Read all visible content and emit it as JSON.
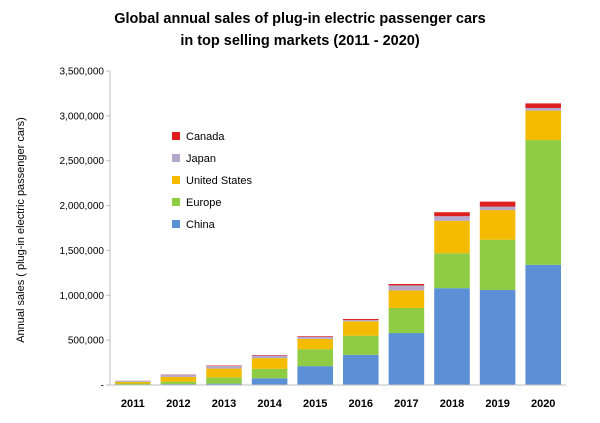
{
  "chart_data": {
    "type": "bar",
    "stacked": true,
    "title_lines": [
      "Global annual sales of plug-in electric passenger cars",
      "in top selling markets (2011 - 2020)"
    ],
    "xlabel": "",
    "ylabel": "Annual sales ( plug-in electric passenger cars)",
    "ylim": [
      0,
      3500000
    ],
    "y_ticks": [
      0,
      500000,
      1000000,
      1500000,
      2000000,
      2500000,
      3000000,
      3500000
    ],
    "y_tick_labels": [
      "-",
      "500,000",
      "1,000,000",
      "1,500,000",
      "2,000,000",
      "2,500,000",
      "3,000,000",
      "3,500,000"
    ],
    "grid": false,
    "legend_position": "upper-left",
    "categories": [
      "2011",
      "2012",
      "2013",
      "2014",
      "2015",
      "2016",
      "2017",
      "2018",
      "2019",
      "2020"
    ],
    "series": [
      {
        "name": "China",
        "color": "#5b8fd6",
        "values": [
          5000,
          10000,
          15000,
          75000,
          210000,
          336000,
          579000,
          1079000,
          1060000,
          1340000
        ]
      },
      {
        "name": "Europe",
        "color": "#8fcc44",
        "values": [
          12000,
          27000,
          71000,
          105000,
          190000,
          214000,
          280000,
          390000,
          560000,
          1390000
        ]
      },
      {
        "name": "United States",
        "color": "#f5bb00",
        "values": [
          18000,
          53000,
          97000,
          119000,
          114000,
          160000,
          195000,
          361000,
          329000,
          328000
        ]
      },
      {
        "name": "Japan",
        "color": "#b4a8cc",
        "values": [
          13000,
          25000,
          29000,
          30000,
          24000,
          15000,
          56000,
          52000,
          39000,
          30000
        ]
      },
      {
        "name": "Canada",
        "color": "#dd1f1f",
        "values": [
          500,
          2500,
          5000,
          5000,
          7000,
          11000,
          16000,
          44000,
          56000,
          51000
        ]
      }
    ],
    "legend_order": [
      "Canada",
      "Japan",
      "United States",
      "Europe",
      "China"
    ]
  }
}
